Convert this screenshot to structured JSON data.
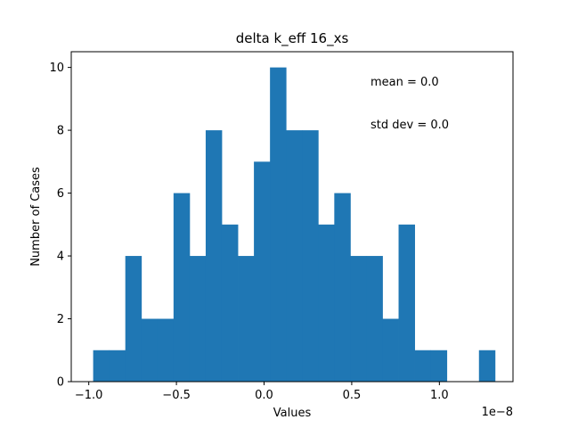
{
  "chart_data": {
    "type": "bar",
    "title": "delta k_eff 16_xs",
    "xlabel": "Values",
    "ylabel": "Number of Cases",
    "x_scale_label": "1e−8",
    "bin_start": -0.975,
    "bin_width": 0.0917,
    "counts": [
      1,
      1,
      4,
      2,
      2,
      6,
      4,
      8,
      5,
      4,
      7,
      10,
      8,
      8,
      5,
      6,
      4,
      4,
      2,
      5,
      1,
      1,
      0,
      0,
      1
    ],
    "xlim": [
      -1.1,
      1.42
    ],
    "ylim": [
      0,
      10.5
    ],
    "xticks": [
      -1.0,
      -0.5,
      0.0,
      0.5,
      1.0
    ],
    "xtick_labels": [
      "−1.0",
      "−0.5",
      "0.0",
      "0.5",
      "1.0"
    ],
    "yticks": [
      0,
      2,
      4,
      6,
      8,
      10
    ],
    "ytick_labels": [
      "0",
      "2",
      "4",
      "6",
      "8",
      "10"
    ],
    "bar_color": "#1f77b4",
    "annotations": [
      "mean = 0.0",
      "std dev = 0.0"
    ]
  }
}
